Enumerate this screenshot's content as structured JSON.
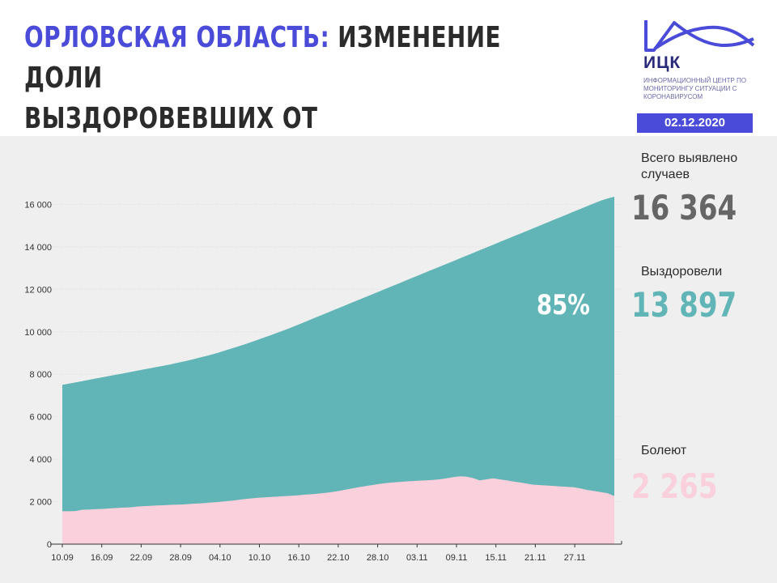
{
  "header": {
    "title_accent": "ОРЛОВСКАЯ ОБЛАСТЬ:",
    "title_rest_line1": "ИЗМЕНЕНИЕ ДОЛИ",
    "title_line2": "ВЫЗДОРОВЕВШИХ ОТ КОРОНАВИРУСА"
  },
  "logo": {
    "name": "ИЦК",
    "description": "ИНФОРМАЦИОННЫЙ ЦЕНТР ПО МОНИТОРИНГУ СИТУАЦИИ С КОРОНАВИРУСОМ"
  },
  "date": "02.12.2020",
  "stats": {
    "total_label": "Всего выявлено случаев",
    "total_value": "16 364",
    "recovered_label": "Выздоровели",
    "recovered_value": "13 897",
    "recovered_share": "85%",
    "sick_label": "Болеют",
    "sick_value": "2 265"
  },
  "colors": {
    "accent": "#4a4bd8",
    "recovered": "#62b5b6",
    "sick": "#f9d0db",
    "total_text": "#666666",
    "panel_bg": "#efefef"
  },
  "chart_data": {
    "type": "area",
    "y_ticks": [
      "0",
      "2 000",
      "4 000",
      "6 000",
      "8 000",
      "10 000",
      "12 000",
      "14 000",
      "16 000"
    ],
    "ylim": [
      0,
      16364
    ],
    "x_tick_labels": [
      "10.09",
      "16.09",
      "22.09",
      "28.09",
      "04.10",
      "10.10",
      "16.10",
      "22.10",
      "28.10",
      "03.11",
      "09.11",
      "15.11",
      "21.11",
      "27.11"
    ],
    "x_start": "10.09",
    "x_end": "02.12",
    "series": [
      {
        "name": "Болеют",
        "color": "#f9d0db",
        "values": [
          1550,
          1550,
          1560,
          1620,
          1630,
          1650,
          1660,
          1680,
          1700,
          1720,
          1730,
          1760,
          1790,
          1800,
          1820,
          1830,
          1850,
          1860,
          1870,
          1890,
          1910,
          1930,
          1960,
          1980,
          2010,
          2040,
          2080,
          2120,
          2150,
          2180,
          2200,
          2220,
          2240,
          2260,
          2280,
          2300,
          2330,
          2350,
          2380,
          2410,
          2450,
          2500,
          2560,
          2620,
          2680,
          2730,
          2780,
          2830,
          2870,
          2900,
          2930,
          2950,
          2970,
          2990,
          3000,
          3020,
          3050,
          3100,
          3150,
          3190,
          3180,
          3110,
          3000,
          3050,
          3100,
          3050,
          3000,
          2950,
          2900,
          2850,
          2800,
          2780,
          2760,
          2740,
          2720,
          2700,
          2680,
          2620,
          2550,
          2500,
          2450,
          2400,
          2265
        ]
      },
      {
        "name": "Всего выявлено случаев",
        "color": "#62b5b6",
        "values": [
          7500,
          7560,
          7620,
          7680,
          7740,
          7800,
          7860,
          7920,
          7980,
          8040,
          8100,
          8160,
          8220,
          8280,
          8340,
          8400,
          8460,
          8530,
          8600,
          8670,
          8750,
          8830,
          8910,
          9000,
          9100,
          9200,
          9300,
          9400,
          9510,
          9620,
          9730,
          9840,
          9960,
          10080,
          10200,
          10330,
          10460,
          10590,
          10720,
          10850,
          10980,
          11110,
          11240,
          11370,
          11500,
          11630,
          11760,
          11890,
          12020,
          12150,
          12280,
          12410,
          12540,
          12670,
          12800,
          12930,
          13060,
          13190,
          13320,
          13450,
          13580,
          13710,
          13840,
          13970,
          14100,
          14230,
          14360,
          14490,
          14620,
          14750,
          14880,
          15010,
          15140,
          15270,
          15400,
          15530,
          15660,
          15790,
          15920,
          16050,
          16180,
          16280,
          16364
        ]
      }
    ]
  }
}
